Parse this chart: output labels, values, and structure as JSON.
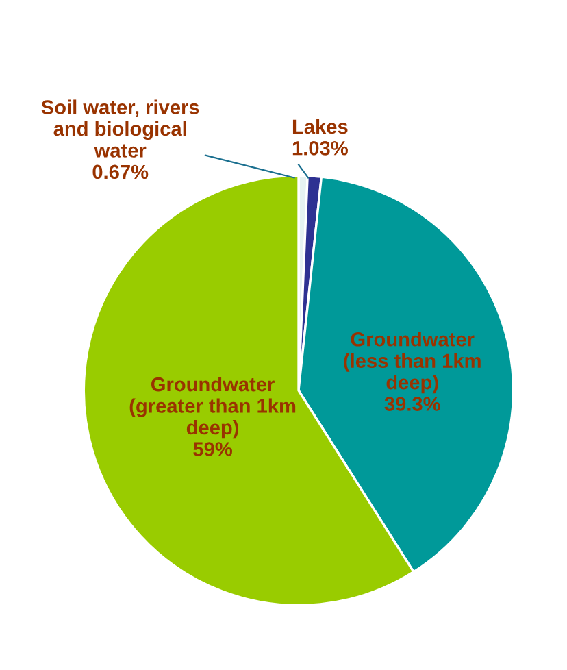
{
  "chart_data": {
    "type": "pie",
    "categories": [
      "Soil water, rivers\nand biological\nwater",
      "Lakes",
      "Groundwater\n(less than 1km\ndeep)",
      "Groundwater\n(greater than 1km\ndeep)"
    ],
    "values": [
      0.67,
      1.03,
      39.3,
      59
    ],
    "value_labels": [
      "0.67%",
      "1.03%",
      "39.3%",
      "59%"
    ],
    "colors": [
      "#e6f2f2",
      "#2e3192",
      "#009999",
      "#99cc00"
    ]
  }
}
